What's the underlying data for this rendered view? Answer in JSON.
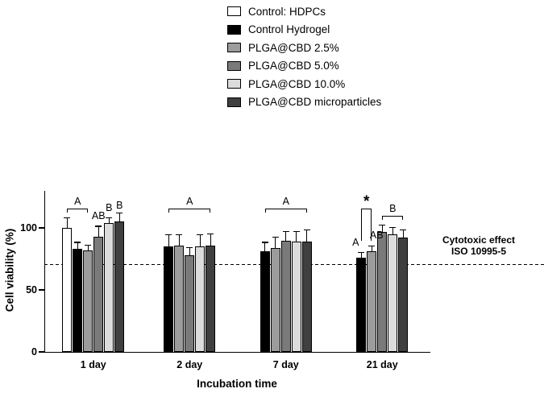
{
  "chart_data": {
    "type": "bar",
    "title": "",
    "xlabel": "Incubation time",
    "ylabel": "Cell viability (%)",
    "ylim": [
      0,
      130
    ],
    "yticks": [
      0,
      50,
      100
    ],
    "grid": false,
    "legend_position": "top-right",
    "categories": [
      "1 day",
      "2 day",
      "7 day",
      "21 day"
    ],
    "series": [
      {
        "name": "Control: HDPCs",
        "color": "#ffffff",
        "values": [
          100,
          null,
          null,
          null
        ],
        "errors": [
          8,
          null,
          null,
          null
        ]
      },
      {
        "name": "Control Hydrogel",
        "color": "#000000",
        "values": [
          83,
          85,
          81,
          76
        ],
        "errors": [
          5,
          9,
          7,
          4
        ]
      },
      {
        "name": "PLGA@CBD 2.5%",
        "color": "#9c9c9c",
        "values": [
          82,
          86,
          84,
          81
        ],
        "errors": [
          4,
          8,
          8,
          4
        ]
      },
      {
        "name": "PLGA@CBD 5.0%",
        "color": "#7a7a7a",
        "values": [
          93,
          78,
          90,
          97
        ],
        "errors": [
          8,
          6,
          7,
          5
        ]
      },
      {
        "name": "PLGA@CBD 10.0%",
        "color": "#dcdcdc",
        "values": [
          104,
          85,
          89,
          95
        ],
        "errors": [
          4,
          9,
          8,
          5
        ]
      },
      {
        "name": "PLGA@CBD microparticles",
        "color": "#3f3f3f",
        "values": [
          105,
          86,
          89,
          92
        ],
        "errors": [
          7,
          9,
          9,
          6
        ]
      }
    ],
    "threshold": {
      "value": 70,
      "label_line1": "Cytotoxic effect",
      "label_line2": "ISO 10995-5"
    },
    "annotations": [
      {
        "group": 0,
        "type": "bracket",
        "from": 0,
        "to": 2,
        "label": "A",
        "y": 116,
        "legs": 5
      },
      {
        "group": 0,
        "type": "text",
        "series": 3,
        "label": "AB",
        "y": 105
      },
      {
        "group": 0,
        "type": "text",
        "series": 4,
        "label": "B",
        "y": 112
      },
      {
        "group": 0,
        "type": "text",
        "series": 5,
        "label": "B",
        "y": 114
      },
      {
        "group": 1,
        "type": "bracket",
        "from": 1,
        "to": 5,
        "label": "A",
        "y": 116,
        "legs": 5
      },
      {
        "group": 2,
        "type": "bracket",
        "from": 1,
        "to": 5,
        "label": "A",
        "y": 116,
        "legs": 5
      },
      {
        "group": 3,
        "type": "bracket",
        "from": 1,
        "to": 2,
        "label": "*",
        "y": 116,
        "legs": 40
      },
      {
        "group": 3,
        "type": "text",
        "series": 1,
        "label": "A",
        "y": 84,
        "dx": -7
      },
      {
        "group": 3,
        "type": "text",
        "series": 2,
        "label": "AB",
        "y": 90,
        "dx": 6
      },
      {
        "group": 3,
        "type": "bracket",
        "from": 3,
        "to": 5,
        "label": "B",
        "y": 110,
        "legs": 5
      }
    ]
  }
}
